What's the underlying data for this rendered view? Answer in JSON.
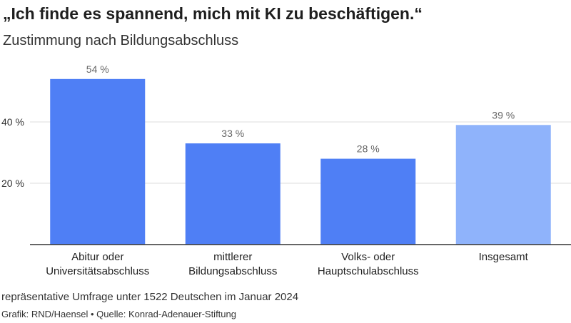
{
  "header": {
    "title": "„Ich finde es spannend, mich mit KI zu beschäftigen.“",
    "subtitle": "Zustimmung nach Bildungsabschluss"
  },
  "footer": {
    "note": "repräsentative Umfrage unter 1522 Deutschen im Januar 2024",
    "credit": "Grafik: RND/Haensel • Quelle: Konrad-Adenauer-Stiftung"
  },
  "colors": {
    "bar_primary": "#4f7ff5",
    "bar_highlight": "#8fb3fb",
    "grid": "#dddddd",
    "axis": "#333333",
    "value_label": "#666666"
  },
  "chart_data": {
    "type": "bar",
    "title": "„Ich finde es spannend, mich mit KI zu beschäftigen.“",
    "subtitle": "Zustimmung nach Bildungsabschluss",
    "categories": [
      [
        "Abitur oder",
        "Universitätsabschluss"
      ],
      [
        "mittlerer",
        "Bildungsabschluss"
      ],
      [
        "Volks- oder",
        "Hauptschulabschluss"
      ],
      [
        "Insgesamt"
      ]
    ],
    "values": [
      54,
      33,
      28,
      39
    ],
    "value_labels": [
      "54 %",
      "33 %",
      "28 %",
      "39 %"
    ],
    "highlight": [
      false,
      false,
      false,
      true
    ],
    "yticks": [
      20,
      40
    ],
    "ytick_labels": [
      "20 %",
      "40 %"
    ],
    "ylim": [
      0,
      60
    ],
    "grid": true,
    "xlabel": "",
    "ylabel": ""
  }
}
